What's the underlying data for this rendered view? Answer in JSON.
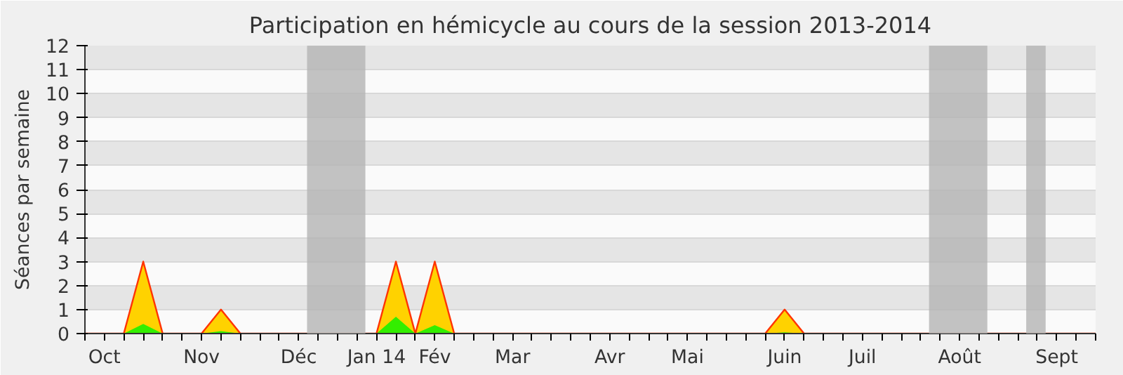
{
  "chart_data": {
    "type": "area",
    "title": "Participation en hémicycle au cours de la session 2013-2014",
    "ylabel": "Séances par semaine",
    "x": [
      "2013-09-30",
      "2013-10-14",
      "2013-10-21",
      "2013-10-28",
      "2013-11-11",
      "2013-11-18",
      "2013-11-25",
      "2014-01-13",
      "2014-01-20",
      "2014-01-27",
      "2014-02-03",
      "2014-02-10",
      "2014-06-02",
      "2014-06-09",
      "2014-06-16",
      "2014-09-29"
    ],
    "series": [
      {
        "color": "#ffd200",
        "values": [
          0,
          0,
          3,
          0,
          0,
          1,
          0,
          0,
          3,
          0,
          3,
          0,
          0,
          1,
          0,
          0
        ]
      },
      {
        "color": "#33ee00",
        "values": [
          0,
          0,
          0.4,
          0,
          0,
          0.1,
          0,
          0,
          0.7,
          0,
          0.35,
          0,
          0,
          0.05,
          0,
          0
        ]
      }
    ],
    "xlim": [
      "2013-09-30",
      "2014-09-29"
    ],
    "ylim": [
      0,
      12
    ],
    "xticks": [
      {
        "value": "2013-09-30",
        "label": null
      },
      {
        "value": "2013-10-07",
        "label": "Oct"
      },
      {
        "value": "2013-10-14",
        "label": null
      },
      {
        "value": "2013-10-21",
        "label": null
      },
      {
        "value": "2013-10-28",
        "label": null
      },
      {
        "value": "2013-11-04",
        "label": null
      },
      {
        "value": "2013-11-11",
        "label": "Nov"
      },
      {
        "value": "2013-11-18",
        "label": null
      },
      {
        "value": "2013-11-25",
        "label": null
      },
      {
        "value": "2013-12-02",
        "label": null
      },
      {
        "value": "2013-12-09",
        "label": null
      },
      {
        "value": "2013-12-16",
        "label": "Déc"
      },
      {
        "value": "2013-12-23",
        "label": null
      },
      {
        "value": "2013-12-30",
        "label": null
      },
      {
        "value": "2014-01-06",
        "label": null
      },
      {
        "value": "2014-01-13",
        "label": "Jan 14"
      },
      {
        "value": "2014-01-20",
        "label": null
      },
      {
        "value": "2014-01-27",
        "label": null
      },
      {
        "value": "2014-02-03",
        "label": "Fév"
      },
      {
        "value": "2014-02-10",
        "label": null
      },
      {
        "value": "2014-02-17",
        "label": null
      },
      {
        "value": "2014-02-24",
        "label": null
      },
      {
        "value": "2014-03-03",
        "label": "Mar"
      },
      {
        "value": "2014-03-10",
        "label": null
      },
      {
        "value": "2014-03-17",
        "label": null
      },
      {
        "value": "2014-03-24",
        "label": null
      },
      {
        "value": "2014-03-31",
        "label": null
      },
      {
        "value": "2014-04-07",
        "label": "Avr"
      },
      {
        "value": "2014-04-14",
        "label": null
      },
      {
        "value": "2014-04-21",
        "label": null
      },
      {
        "value": "2014-04-28",
        "label": null
      },
      {
        "value": "2014-05-05",
        "label": "Mai"
      },
      {
        "value": "2014-05-12",
        "label": null
      },
      {
        "value": "2014-05-19",
        "label": null
      },
      {
        "value": "2014-05-26",
        "label": null
      },
      {
        "value": "2014-06-02",
        "label": null
      },
      {
        "value": "2014-06-09",
        "label": "Juin"
      },
      {
        "value": "2014-06-16",
        "label": null
      },
      {
        "value": "2014-06-23",
        "label": null
      },
      {
        "value": "2014-06-30",
        "label": null
      },
      {
        "value": "2014-07-07",
        "label": "Juil"
      },
      {
        "value": "2014-07-14",
        "label": null
      },
      {
        "value": "2014-07-21",
        "label": null
      },
      {
        "value": "2014-07-28",
        "label": null
      },
      {
        "value": "2014-08-04",
        "label": null
      },
      {
        "value": "2014-08-11",
        "label": "Août"
      },
      {
        "value": "2014-08-18",
        "label": null
      },
      {
        "value": "2014-08-25",
        "label": null
      },
      {
        "value": "2014-09-01",
        "label": null
      },
      {
        "value": "2014-09-08",
        "label": null
      },
      {
        "value": "2014-09-15",
        "label": "Sept"
      },
      {
        "value": "2014-09-22",
        "label": null
      },
      {
        "value": "2014-09-29",
        "label": null
      }
    ],
    "yticks": [
      0,
      1,
      2,
      3,
      4,
      5,
      6,
      7,
      8,
      9,
      10,
      11,
      12
    ],
    "grid": "y",
    "bands": [
      {
        "axis": "x",
        "from": "2013-12-19",
        "to": "2014-01-09",
        "color": "#b4b4b4"
      },
      {
        "axis": "x",
        "from": "2014-07-31",
        "to": "2014-08-21",
        "color": "#b4b4b4"
      },
      {
        "axis": "x",
        "from": "2014-09-04",
        "to": "2014-09-11",
        "color": "#b4b4b4"
      }
    ]
  }
}
